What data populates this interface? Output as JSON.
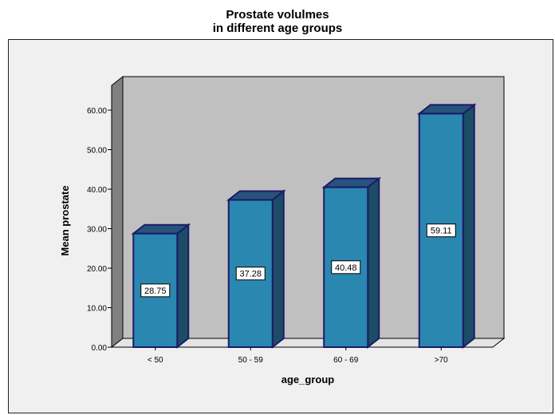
{
  "chart_data": {
    "type": "bar",
    "title": [
      "Prostate volulmes",
      "in different age groups"
    ],
    "xlabel": "age_group",
    "ylabel": "Mean prostate",
    "categories": [
      "< 50",
      "50 - 59",
      "60 - 69",
      ">70"
    ],
    "values": [
      28.75,
      37.28,
      40.48,
      59.11
    ],
    "data_labels": [
      "28.75",
      "37.28",
      "40.48",
      "59.11"
    ],
    "ylim": [
      0,
      60
    ],
    "yticks": [
      "0.00",
      "10.00",
      "20.00",
      "30.00",
      "40.00",
      "50.00",
      "60.00"
    ],
    "grid": false,
    "legend": "none",
    "style": "3d",
    "colors": {
      "bar_front": "#2a87b0",
      "bar_side": "#1c4c66",
      "bar_top": "#27547a",
      "bar_edge": "#1c1a6a",
      "back_wall": "#c0c0c0",
      "side_wall": "#808080",
      "floor": "#e4e4e4",
      "frame_background": "#f0f0f0"
    }
  }
}
